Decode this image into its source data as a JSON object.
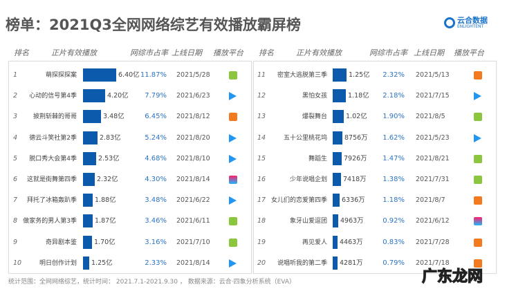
{
  "title": "榜单：2021Q3全网网络综艺有效播放霸屏榜",
  "logo": {
    "cn": "云合数据",
    "en": "ENLIGHTENT"
  },
  "headers": [
    "排名",
    "正片有效播放",
    "网综市占率",
    "上线日期",
    "播放平台"
  ],
  "colors": {
    "bar": "#0b5aab",
    "pct": "#2c74c4"
  },
  "rows": [
    {
      "rank": "1",
      "name": "萌探探探案",
      "plays": "6.40亿",
      "plays_wan": 64000,
      "share": "11.87%",
      "date": "2021/5/28",
      "platform": "iqiyi-icon"
    },
    {
      "rank": "2",
      "name": "心动的信号第4季",
      "plays": "4.20亿",
      "plays_wan": 42000,
      "share": "7.79%",
      "date": "2021/6/23",
      "platform": "tencent-video-icon"
    },
    {
      "rank": "3",
      "name": "披荆斩棘的哥哥",
      "plays": "3.48亿",
      "plays_wan": 34800,
      "share": "6.45%",
      "date": "2021/8/12",
      "platform": "mango-tv-icon"
    },
    {
      "rank": "4",
      "name": "德云斗笑社第2季",
      "plays": "2.83亿",
      "plays_wan": 28300,
      "share": "5.24%",
      "date": "2021/8/20",
      "platform": "tencent-video-icon"
    },
    {
      "rank": "5",
      "name": "脱口秀大会第4季",
      "plays": "2.53亿",
      "plays_wan": 25300,
      "share": "4.68%",
      "date": "2021/8/10",
      "platform": "tencent-video-icon"
    },
    {
      "rank": "6",
      "name": "这就是街舞第四季",
      "plays": "2.32亿",
      "plays_wan": 23200,
      "share": "4.30%",
      "date": "2021/8/14",
      "platform": "youku-icon"
    },
    {
      "rank": "7",
      "name": "拜托了冰箱轰趴季",
      "plays": "1.88亿",
      "plays_wan": 18800,
      "share": "3.48%",
      "date": "2021/6/22",
      "platform": "tencent-video-icon"
    },
    {
      "rank": "8",
      "name": "做家务的男人第3季",
      "plays": "1.87亿",
      "plays_wan": 18700,
      "share": "3.46%",
      "date": "2021/6/11",
      "platform": "iqiyi-icon"
    },
    {
      "rank": "9",
      "name": "奇异剧本鉴",
      "plays": "1.70亿",
      "plays_wan": 17000,
      "share": "3.16%",
      "date": "2021/7/10",
      "platform": "iqiyi-icon"
    },
    {
      "rank": "10",
      "name": "明日创作计划",
      "plays": "1.25亿",
      "plays_wan": 12500,
      "share": "2.33%",
      "date": "2021/8/14",
      "platform": "tencent-video-icon"
    },
    {
      "rank": "11",
      "name": "密室大逃脱第三季",
      "plays": "1.25亿",
      "plays_wan": 12500,
      "share": "2.32%",
      "date": "2021/5/13",
      "platform": "mango-tv-icon"
    },
    {
      "rank": "12",
      "name": "黑怕女孩",
      "plays": "1.18亿",
      "plays_wan": 11800,
      "share": "2.18%",
      "date": "2021/7/15",
      "platform": "tencent-video-icon"
    },
    {
      "rank": "13",
      "name": "爆裂舞台",
      "plays": "1.02亿",
      "plays_wan": 10200,
      "share": "1.90%",
      "date": "2021/8/5",
      "platform": "iqiyi-icon"
    },
    {
      "rank": "14",
      "name": "五十公里桃花坞",
      "plays": "8756万",
      "plays_wan": 8756,
      "share": "1.62%",
      "date": "2021/5/23",
      "platform": "tencent-video-icon"
    },
    {
      "rank": "15",
      "name": "舞蹈生",
      "plays": "7926万",
      "plays_wan": 7926,
      "share": "1.47%",
      "date": "2021/8/21",
      "platform": "iqiyi-icon"
    },
    {
      "rank": "16",
      "name": "少年说唱企划",
      "plays": "7418万",
      "plays_wan": 7418,
      "share": "1.38%",
      "date": "2021/7/31",
      "platform": "iqiyi-icon"
    },
    {
      "rank": "17",
      "name": "女儿们的恋爱第四季",
      "plays": "6336万",
      "plays_wan": 6336,
      "share": "1.18%",
      "date": "2021/8/7",
      "platform": "mango-tv-icon"
    },
    {
      "rank": "18",
      "name": "象牙山爱逗团",
      "plays": "4963万",
      "plays_wan": 4963,
      "share": "0.92%",
      "date": "2021/6/12",
      "platform": "youku-icon"
    },
    {
      "rank": "19",
      "name": "再见爱人",
      "plays": "4463万",
      "plays_wan": 4463,
      "share": "0.83%",
      "date": "2021/7/28",
      "platform": "mango-tv-icon"
    },
    {
      "rank": "20",
      "name": "说唱听我的第二季",
      "plays": "4281万",
      "plays_wan": 4281,
      "share": "0.79%",
      "date": "2021/7/18",
      "platform": "mango-tv-icon"
    }
  ],
  "footer": "统计范围：全网网络综艺，统计时间： 2021.7.1-2021.9.30 ， 数据来源：云合·四象分析系统（EVA）",
  "watermark": "广东龙网"
}
